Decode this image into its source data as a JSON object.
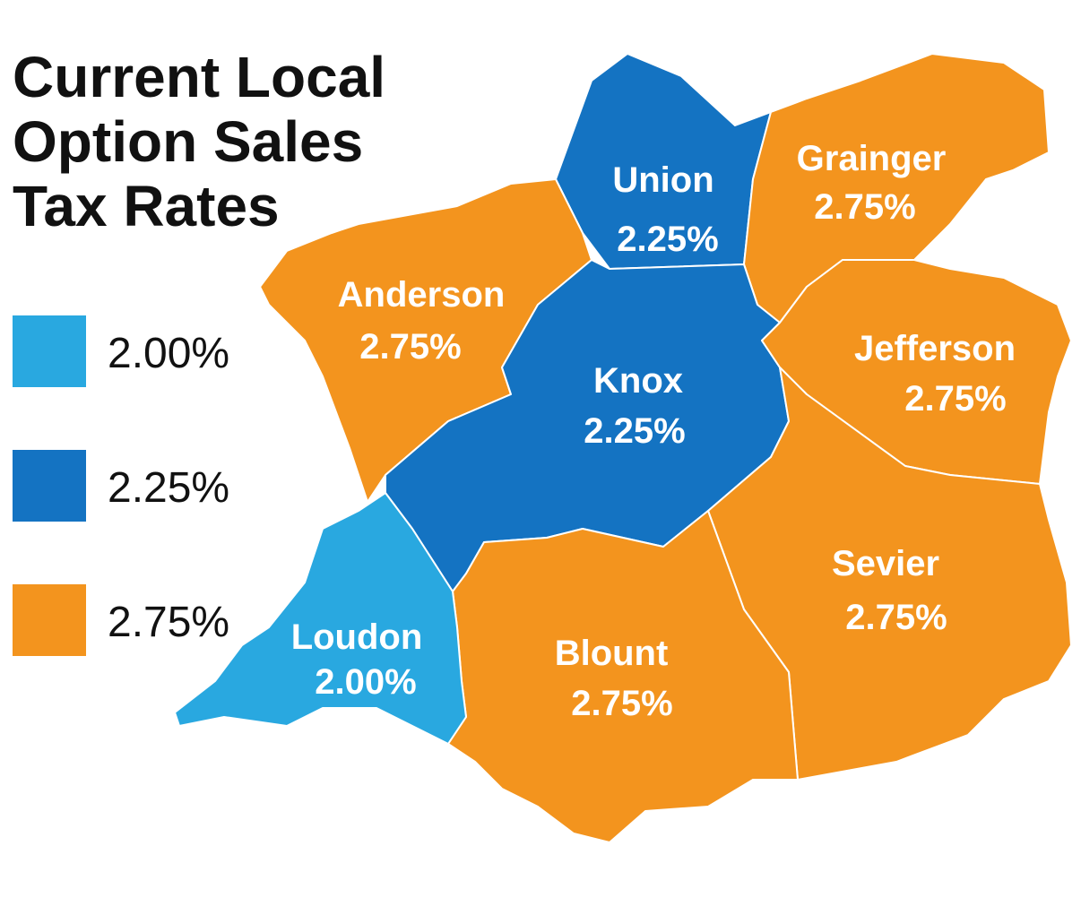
{
  "title": [
    "Current Local",
    "Option Sales",
    "Tax Rates"
  ],
  "legend": [
    {
      "label": "2.00%",
      "color": "#29a8e0"
    },
    {
      "label": "2.25%",
      "color": "#1473c2"
    },
    {
      "label": "2.75%",
      "color": "#f3941e"
    }
  ],
  "counties": [
    {
      "name": "Union",
      "rate": "2.25%"
    },
    {
      "name": "Grainger",
      "rate": "2.75%"
    },
    {
      "name": "Anderson",
      "rate": "2.75%"
    },
    {
      "name": "Knox",
      "rate": "2.25%"
    },
    {
      "name": "Jefferson",
      "rate": "2.75%"
    },
    {
      "name": "Sevier",
      "rate": "2.75%"
    },
    {
      "name": "Blount",
      "rate": "2.75%"
    },
    {
      "name": "Loudon",
      "rate": "2.00%"
    }
  ]
}
